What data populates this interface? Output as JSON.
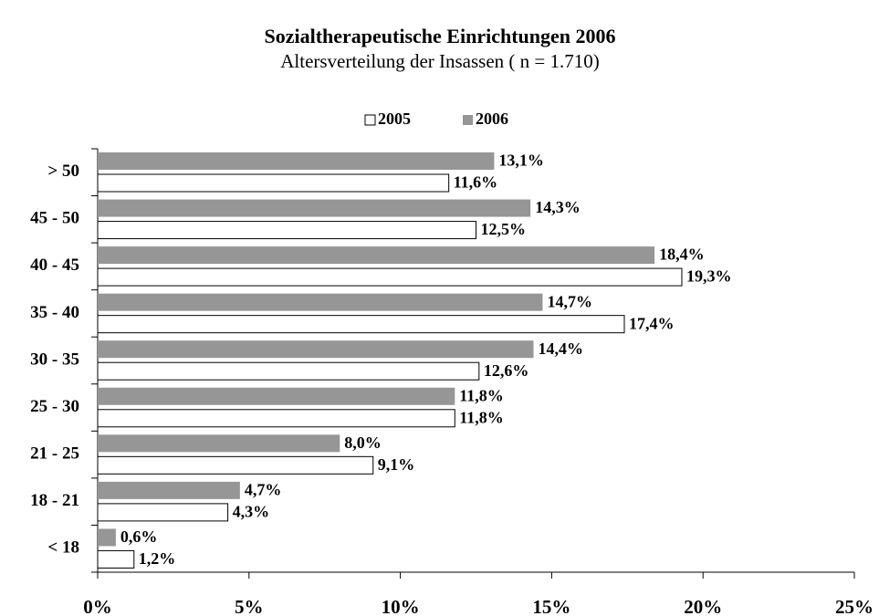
{
  "chart_data": {
    "type": "hbar",
    "title": "Sozialtherapeutische Einrichtungen 2006",
    "subtitle": "Altersverteilung der Insassen ( n = 1.710)",
    "categories": [
      "> 50",
      "45 - 50",
      "40 - 45",
      "35 - 40",
      "30 - 35",
      "25 - 30",
      "21 - 25",
      "18 - 21",
      "< 18"
    ],
    "series": [
      {
        "name": "2005",
        "color": "#ffffff",
        "values": [
          11.6,
          12.5,
          19.3,
          17.4,
          12.6,
          11.8,
          9.1,
          4.3,
          1.2
        ],
        "value_labels": [
          "11,6%",
          "12,5%",
          "19,3%",
          "17,4%",
          "12,6%",
          "11,8%",
          "9,1%",
          "4,3%",
          "1,2%"
        ]
      },
      {
        "name": "2006",
        "color": "#969696",
        "values": [
          13.1,
          14.3,
          18.4,
          14.7,
          14.4,
          11.8,
          8.0,
          4.7,
          0.6
        ],
        "value_labels": [
          "13,1%",
          "14,3%",
          "18,4%",
          "14,7%",
          "14,4%",
          "11,8%",
          "8,0%",
          "4,7%",
          "0,6%"
        ]
      }
    ],
    "xlim": [
      0,
      25
    ],
    "xticks": [
      {
        "value": 0,
        "label": "0%"
      },
      {
        "value": 5,
        "label": "5%"
      },
      {
        "value": 10,
        "label": "10%"
      },
      {
        "value": 15,
        "label": "15%"
      },
      {
        "value": 20,
        "label": "20%"
      },
      {
        "value": 25,
        "label": "25%"
      }
    ],
    "legend": "top"
  }
}
